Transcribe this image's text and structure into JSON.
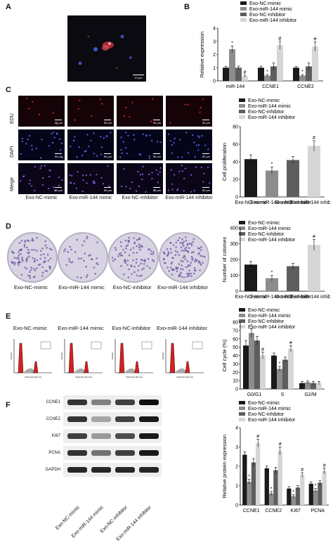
{
  "panels": {
    "A": "A",
    "B": "B",
    "C": "C",
    "D": "D",
    "E": "E",
    "F": "F"
  },
  "groups": [
    "Exo-NC-mimic",
    "Exo-miR-144 mimic",
    "Exo-NC-inhibitor",
    "Exo-miR-144 inhibitor"
  ],
  "legend_colors": [
    "#1a1a1a",
    "#8c8c8c",
    "#5e5e5e",
    "#d6d6d6"
  ],
  "scale_bars": {
    "panel_a": "10 μm",
    "panel_c": "50 μm"
  },
  "panel_c_rows": [
    "EDU",
    "DAPI",
    "Merge"
  ],
  "panel_d_columns": [
    "Exo-NC-mimic",
    "Exo-miR-144 mimic",
    "Exo-NC-inhibitor",
    "Exo-miR-144 inhibitor"
  ],
  "panel_e_columns": [
    "Exo-NC-mimic",
    "Exo-miR-144 mimic",
    "Exo-NC-inhibitor",
    "Exo-miR-144 inhibitor"
  ],
  "flow_axis": {
    "x": "Channels (FL2-A)",
    "y": "Number"
  },
  "panel_f_blots": [
    "CCNE1",
    "CCNE2",
    "KI67",
    "PCNA",
    "GAPDH"
  ],
  "panel_f_columns": [
    "Exo-NC-mimic",
    "Exo-miR-144 mimic",
    "Exo-NC-inhibitor",
    "Exo-miR-144 inhibitor"
  ],
  "chart_data": [
    {
      "id": "B",
      "type": "bar",
      "ylabel": "Relative expression",
      "categories": [
        "miR-144",
        "CCNE1",
        "CCNE2"
      ],
      "ylim": [
        0,
        4
      ],
      "yticks": [
        0,
        1,
        2,
        3,
        4
      ],
      "series": [
        {
          "name": "Exo-NC-mimic",
          "values": [
            1.0,
            1.0,
            1.0
          ],
          "errors": [
            0.1,
            0.12,
            0.1
          ]
        },
        {
          "name": "Exo-miR-144 mimic",
          "values": [
            2.4,
            0.4,
            0.4
          ],
          "errors": [
            0.25,
            0.08,
            0.08
          ]
        },
        {
          "name": "Exo-NC-inhibitor",
          "values": [
            1.0,
            1.1,
            1.1
          ],
          "errors": [
            0.12,
            0.25,
            0.25
          ]
        },
        {
          "name": "Exo-miR-144 inhibitor",
          "values": [
            0.35,
            2.7,
            2.6
          ],
          "errors": [
            0.08,
            0.3,
            0.35
          ]
        }
      ],
      "annotations": [
        [
          "",
          "*",
          "",
          "#"
        ],
        [
          "",
          "*",
          "",
          "#"
        ],
        [
          "",
          "*",
          "",
          "#"
        ]
      ]
    },
    {
      "id": "C",
      "type": "bar",
      "ylabel": "Cell proliferation",
      "categories": [
        "Exo-NC-mimic",
        "Exo-miR-144 mimic",
        "Exo-NC-inhibitor",
        "Exo-miR-144 inhibitor"
      ],
      "ylim": [
        0,
        80
      ],
      "yticks": [
        0,
        20,
        40,
        60,
        80
      ],
      "values": [
        43,
        30,
        42,
        58
      ],
      "errors": [
        5,
        4,
        4,
        6
      ],
      "annotations": [
        "",
        "*",
        "",
        "#"
      ]
    },
    {
      "id": "D",
      "type": "bar",
      "ylabel": "Number of colonies",
      "categories": [
        "Exo-NC-mimic",
        "Exo-miR-144 mimic",
        "Exo-NC-inhibitor",
        "Exo-miR-144 inhibitor"
      ],
      "ylim": [
        0,
        400
      ],
      "yticks": [
        0,
        100,
        200,
        300,
        400
      ],
      "values": [
        168,
        82,
        158,
        292
      ],
      "errors": [
        20,
        18,
        18,
        35
      ],
      "annotations": [
        "",
        "*",
        "",
        "#"
      ]
    },
    {
      "id": "E",
      "type": "bar",
      "ylabel": "Cell cycle (%)",
      "categories": [
        "G0/G1",
        "S",
        "G2/M"
      ],
      "ylim": [
        0,
        80
      ],
      "yticks": [
        0,
        10,
        20,
        30,
        40,
        50,
        60,
        70,
        80
      ],
      "series": [
        {
          "name": "Exo-NC-mimic",
          "values": [
            52,
            40,
            7
          ],
          "errors": [
            6,
            3,
            2
          ]
        },
        {
          "name": "Exo-miR-144 mimic",
          "values": [
            67,
            24,
            8
          ],
          "errors": [
            5,
            3,
            2
          ]
        },
        {
          "name": "Exo-NC-inhibitor",
          "values": [
            58,
            35,
            7
          ],
          "errors": [
            5,
            3,
            2
          ]
        },
        {
          "name": "Exo-miR-144 inhibitor",
          "values": [
            40,
            48,
            7
          ],
          "errors": [
            4,
            4,
            2
          ]
        }
      ],
      "annotations": [
        [
          "",
          "*",
          "",
          "#"
        ],
        [
          "",
          "*",
          "",
          "#"
        ],
        [
          "",
          "",
          "",
          ""
        ]
      ]
    },
    {
      "id": "F",
      "type": "bar",
      "ylabel": "Relative protein expression",
      "categories": [
        "CCNE1",
        "CCNE2",
        "KI67",
        "PCNA"
      ],
      "ylim": [
        0,
        4
      ],
      "yticks": [
        0,
        1,
        2,
        3,
        4
      ],
      "series": [
        {
          "name": "Exo-NC-mimic",
          "values": [
            2.6,
            1.9,
            0.85,
            1.1
          ],
          "errors": [
            0.15,
            0.12,
            0.1,
            0.1
          ]
        },
        {
          "name": "Exo-miR-144 mimic",
          "values": [
            1.2,
            0.6,
            0.45,
            0.75
          ],
          "errors": [
            0.12,
            0.1,
            0.08,
            0.1
          ]
        },
        {
          "name": "Exo-NC-inhibitor",
          "values": [
            2.2,
            1.8,
            0.9,
            1.15
          ],
          "errors": [
            0.2,
            0.15,
            0.1,
            0.12
          ]
        },
        {
          "name": "Exo-miR-144 inhibitor",
          "values": [
            3.2,
            2.8,
            1.55,
            1.75
          ],
          "errors": [
            0.2,
            0.2,
            0.12,
            0.15
          ]
        }
      ],
      "annotations": [
        [
          "",
          "*",
          "",
          "#"
        ],
        [
          "",
          "*",
          "",
          "#"
        ],
        [
          "",
          "*",
          "",
          "#"
        ],
        [
          "",
          "*",
          "",
          "#"
        ]
      ]
    }
  ]
}
